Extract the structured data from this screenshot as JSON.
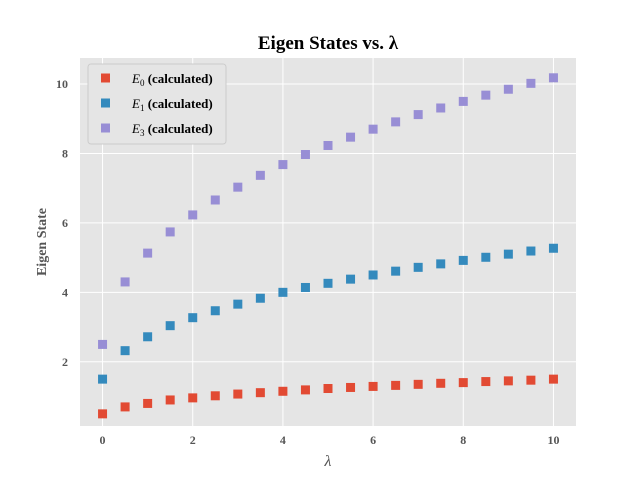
{
  "chart_data": {
    "type": "scatter",
    "title": "Eigen States vs. λ",
    "xlabel": "λ",
    "ylabel": "Eigen State",
    "xlim": [
      -0.5,
      10.5
    ],
    "ylim": [
      0.15,
      10.75
    ],
    "xticks": [
      0,
      2,
      4,
      6,
      8,
      10
    ],
    "yticks": [
      2,
      4,
      6,
      8,
      10
    ],
    "grid": true,
    "legend_position": "top-left",
    "marker": "square",
    "x": [
      0,
      0.5,
      1,
      1.5,
      2,
      2.5,
      3,
      3.5,
      4,
      4.5,
      5,
      5.5,
      6,
      6.5,
      7,
      7.5,
      8,
      8.5,
      9,
      9.5,
      10
    ],
    "series": [
      {
        "name": "E0 (calculated)",
        "name_base": "E",
        "name_sub": "0",
        "name_rest": " (calculated)",
        "color": "#E24A33",
        "values": [
          0.5,
          0.7,
          0.8,
          0.9,
          0.96,
          1.02,
          1.07,
          1.11,
          1.15,
          1.19,
          1.23,
          1.26,
          1.29,
          1.32,
          1.35,
          1.38,
          1.4,
          1.43,
          1.45,
          1.47,
          1.5
        ]
      },
      {
        "name": "E1 (calculated)",
        "name_base": "E",
        "name_sub": "1",
        "name_rest": " (calculated)",
        "color": "#348ABD",
        "values": [
          1.5,
          2.32,
          2.72,
          3.04,
          3.27,
          3.47,
          3.66,
          3.83,
          4.0,
          4.14,
          4.26,
          4.38,
          4.5,
          4.61,
          4.72,
          4.82,
          4.92,
          5.01,
          5.1,
          5.19,
          5.27
        ]
      },
      {
        "name": "E3 (calculated)",
        "name_base": "E",
        "name_sub": "3",
        "name_rest": " (calculated)",
        "color": "#988ED5",
        "values": [
          2.5,
          4.3,
          5.13,
          5.74,
          6.23,
          6.66,
          7.03,
          7.37,
          7.68,
          7.97,
          8.23,
          8.47,
          8.7,
          8.91,
          9.12,
          9.31,
          9.5,
          9.68,
          9.85,
          10.02,
          10.18
        ]
      }
    ]
  },
  "colors": {
    "plot_background": "#E5E5E5",
    "grid": "#FFFFFF"
  }
}
